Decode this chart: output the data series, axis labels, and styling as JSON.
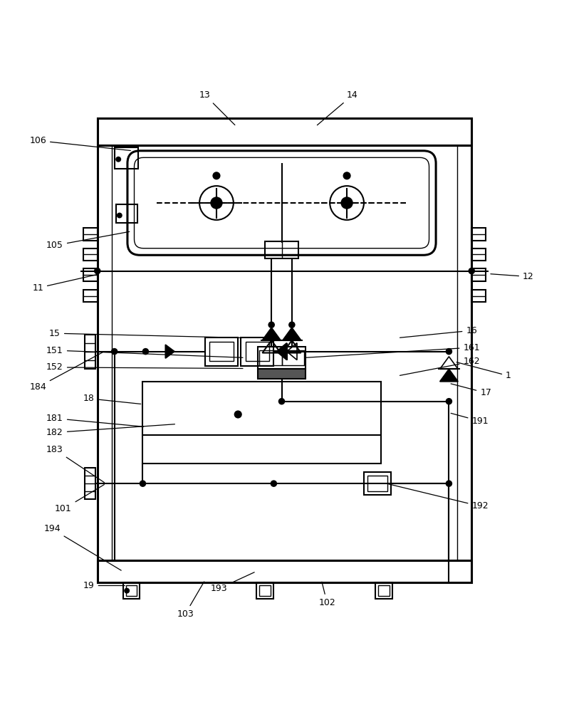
{
  "bg_color": "#ffffff",
  "line_color": "#000000",
  "fig_width": 7.99,
  "fig_height": 10.0,
  "label_positions": {
    "1": [
      0.895,
      0.465,
      0.8,
      0.49
    ],
    "11": [
      0.065,
      0.62,
      0.175,
      0.645
    ],
    "12": [
      0.93,
      0.64,
      0.86,
      0.645
    ],
    "13": [
      0.36,
      0.96,
      0.415,
      0.905
    ],
    "14": [
      0.62,
      0.96,
      0.555,
      0.905
    ],
    "15": [
      0.095,
      0.54,
      0.43,
      0.532
    ],
    "16": [
      0.83,
      0.545,
      0.7,
      0.532
    ],
    "17": [
      0.855,
      0.435,
      0.79,
      0.452
    ],
    "18": [
      0.155,
      0.425,
      0.25,
      0.415
    ],
    "19": [
      0.155,
      0.095,
      0.222,
      0.095
    ],
    "101": [
      0.11,
      0.23,
      0.185,
      0.275
    ],
    "102": [
      0.575,
      0.065,
      0.565,
      0.105
    ],
    "103": [
      0.325,
      0.045,
      0.36,
      0.105
    ],
    "105": [
      0.095,
      0.695,
      0.23,
      0.72
    ],
    "106": [
      0.065,
      0.88,
      0.232,
      0.862
    ],
    "151": [
      0.095,
      0.51,
      0.43,
      0.497
    ],
    "152": [
      0.095,
      0.48,
      0.43,
      0.478
    ],
    "161": [
      0.83,
      0.515,
      0.535,
      0.497
    ],
    "162": [
      0.83,
      0.49,
      0.7,
      0.465
    ],
    "181": [
      0.095,
      0.39,
      0.255,
      0.375
    ],
    "182": [
      0.095,
      0.365,
      0.31,
      0.38
    ],
    "183": [
      0.095,
      0.335,
      0.185,
      0.275
    ],
    "184": [
      0.065,
      0.445,
      0.182,
      0.508
    ],
    "191": [
      0.845,
      0.385,
      0.79,
      0.4
    ],
    "192": [
      0.845,
      0.235,
      0.68,
      0.275
    ],
    "193": [
      0.385,
      0.09,
      0.45,
      0.12
    ],
    "194": [
      0.09,
      0.195,
      0.215,
      0.12
    ]
  }
}
